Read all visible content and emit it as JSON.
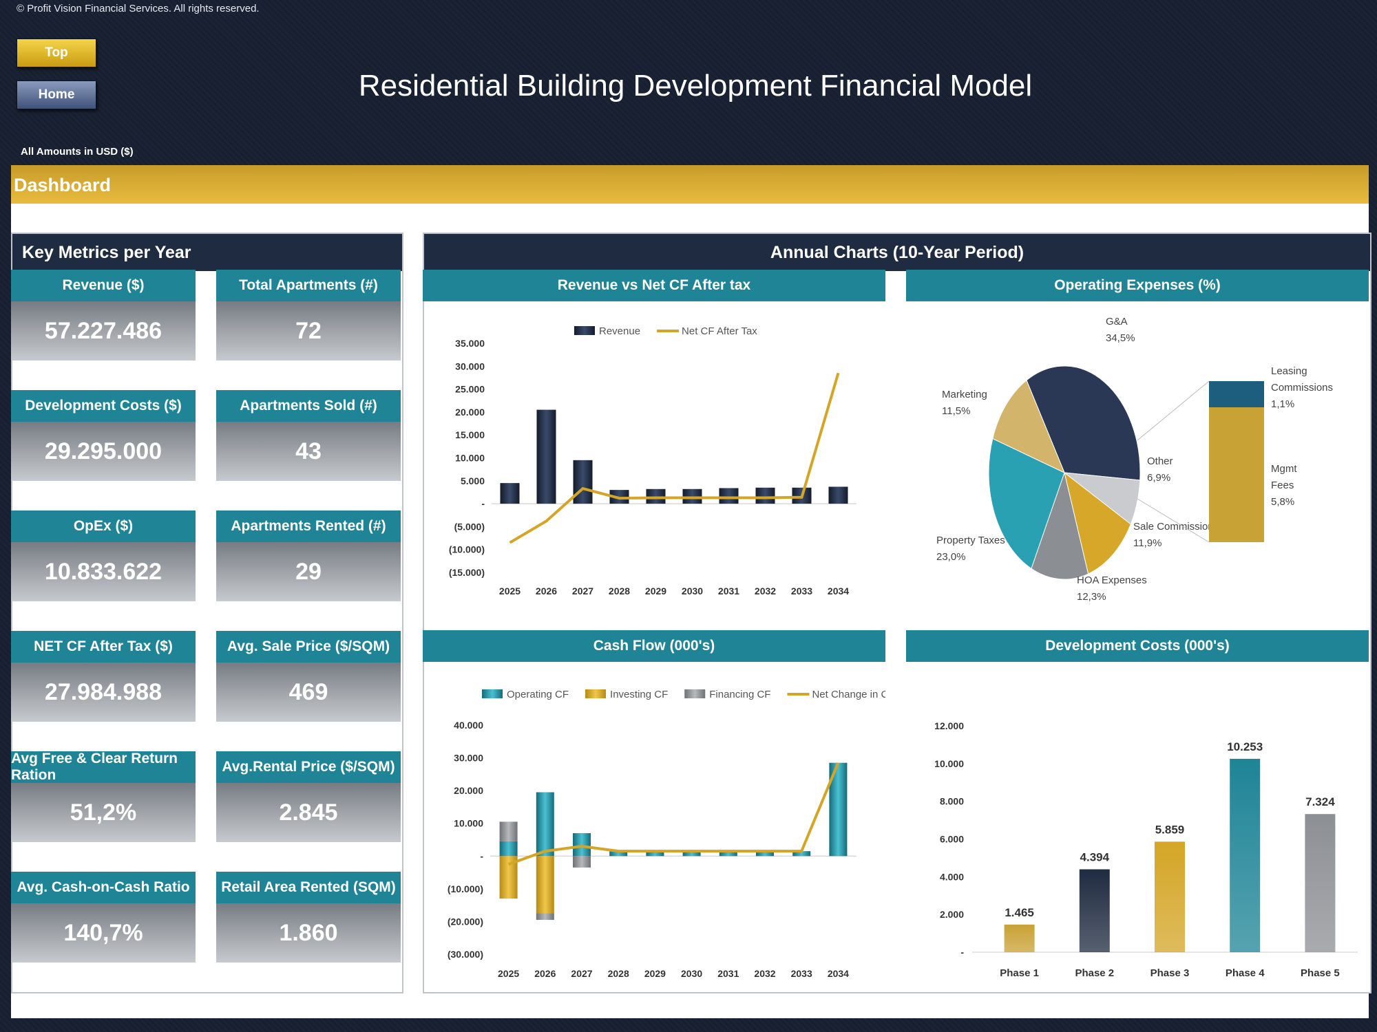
{
  "header": {
    "copyright": "© Profit Vision Financial Services. All rights reserved.",
    "top_button": "Top",
    "home_button": "Home",
    "title": "Residential Building Development Financial Model",
    "amounts_note": "All Amounts in  USD ($)"
  },
  "dashboard": {
    "title": "Dashboard",
    "key_metrics_title": "Key Metrics per Year",
    "annual_charts_title": "Annual Charts (10-Year Period)"
  },
  "metrics": [
    {
      "label": "Revenue ($)",
      "value": "57.227.486"
    },
    {
      "label": "Total Apartments (#)",
      "value": "72"
    },
    {
      "label": "Development Costs ($)",
      "value": "29.295.000"
    },
    {
      "label": "Apartments Sold (#)",
      "value": "43"
    },
    {
      "label": "OpEx ($)",
      "value": "10.833.622"
    },
    {
      "label": "Apartments Rented (#)",
      "value": "29"
    },
    {
      "label": "NET CF After Tax ($)",
      "value": "27.984.988"
    },
    {
      "label": "Avg. Sale Price ($/SQM)",
      "value": "469"
    },
    {
      "label": "Avg Free & Clear Return Ration",
      "value": "51,2%"
    },
    {
      "label": "Avg.Rental Price ($/SQM)",
      "value": "2.845"
    },
    {
      "label": "Avg. Cash-on-Cash Ratio",
      "value": "140,7%"
    },
    {
      "label": "Retail Area Rented (SQM)",
      "value": "1.860"
    }
  ],
  "colors": {
    "navy": "#1f2b40",
    "teal": "#1e8496",
    "gold": "#d4a526",
    "grey": "#8c8f94"
  },
  "chart_data": [
    {
      "type": "bar",
      "title": "Revenue vs Net CF After tax",
      "categories": [
        "2025",
        "2026",
        "2027",
        "2028",
        "2029",
        "2030",
        "2031",
        "2032",
        "2033",
        "2034"
      ],
      "series": [
        {
          "name": "Revenue",
          "kind": "bar",
          "color": "#1f2b40",
          "values": [
            4500,
            20500,
            9500,
            3000,
            3200,
            3200,
            3400,
            3500,
            3500,
            3700
          ]
        },
        {
          "name": "Net CF After Tax",
          "kind": "line",
          "color": "#d4a526",
          "values": [
            -8500,
            -3800,
            3300,
            1200,
            1300,
            1300,
            1300,
            1300,
            1400,
            28500
          ]
        }
      ],
      "ylim": [
        -15000,
        35000
      ],
      "yticks": [
        35000,
        30000,
        25000,
        20000,
        15000,
        10000,
        5000,
        0,
        -5000,
        -10000,
        -15000
      ],
      "ytick_labels": [
        "35.000",
        "30.000",
        "25.000",
        "20.000",
        "15.000",
        "10.000",
        "5.000",
        "-",
        "(5.000)",
        "(10.000)",
        "(15.000)"
      ],
      "legend": "top"
    },
    {
      "type": "pie",
      "title": "Operating Expenses (%)",
      "slices": [
        {
          "label": "G&A",
          "value": 34.5,
          "value_label": "34,5%",
          "color": "#2a3856"
        },
        {
          "label": "Other",
          "value": 6.9,
          "value_label": "6,9%",
          "color": "#c9cbce"
        },
        {
          "label": "Sale Commissions",
          "value": 11.9,
          "value_label": "11,9%",
          "color": "#d7a72a"
        },
        {
          "label": "HOA Expenses",
          "value": 12.3,
          "value_label": "12,3%",
          "color": "#8b8e92"
        },
        {
          "label": "Property Taxes",
          "value": 23.0,
          "value_label": "23,0%",
          "color": "#2aa0b3"
        },
        {
          "label": "Marketing",
          "value": 11.5,
          "value_label": "11,5%",
          "color": "#d2b56a"
        }
      ],
      "breakdown_of": "Other",
      "breakdown": [
        {
          "label": "Leasing Commissions",
          "value": 1.1,
          "value_label": "1,1%",
          "color": "#1d5e7f"
        },
        {
          "label": "Mgmt Fees",
          "value": 5.8,
          "value_label": "5,8%",
          "color": "#c9a235"
        }
      ]
    },
    {
      "type": "bar",
      "title": "Cash Flow (000's)",
      "categories": [
        "2025",
        "2026",
        "2027",
        "2028",
        "2029",
        "2030",
        "2031",
        "2032",
        "2033",
        "2034"
      ],
      "series": [
        {
          "name": "Operating CF",
          "kind": "bar",
          "color": "#1e8496",
          "values": [
            4500,
            19500,
            7000,
            1500,
            1500,
            1500,
            1500,
            1500,
            1500,
            28500
          ]
        },
        {
          "name": "Investing CF",
          "kind": "bar",
          "color": "#d4a526",
          "values": [
            -13000,
            -17500,
            0,
            0,
            0,
            0,
            0,
            0,
            0,
            0
          ]
        },
        {
          "name": "Financing CF",
          "kind": "bar",
          "color": "#8c8f94",
          "values": [
            6000,
            -2000,
            -3500,
            0,
            0,
            0,
            0,
            0,
            0,
            0
          ]
        },
        {
          "name": "Net Change in Cash",
          "kind": "line",
          "color": "#d4a526",
          "values": [
            -2500,
            1500,
            3000,
            1500,
            1500,
            1500,
            1500,
            1500,
            1500,
            28500
          ]
        }
      ],
      "ylim": [
        -30000,
        40000
      ],
      "yticks": [
        40000,
        30000,
        20000,
        10000,
        0,
        -10000,
        -20000,
        -30000
      ],
      "ytick_labels": [
        "40.000",
        "30.000",
        "20.000",
        "10.000",
        "-",
        "(10.000)",
        "(20.000)",
        "(30.000)"
      ],
      "legend": "top"
    },
    {
      "type": "bar",
      "title": "Development Costs (000's)",
      "categories": [
        "Phase 1",
        "Phase 2",
        "Phase 3",
        "Phase 4",
        "Phase 5"
      ],
      "values": [
        1465,
        4394,
        5859,
        10253,
        7324
      ],
      "value_labels": [
        "1.465",
        "4.394",
        "5.859",
        "10.253",
        "7.324"
      ],
      "colors": [
        "#c9a235",
        "#1f2b40",
        "#d4a526",
        "#1e8496",
        "#8c8f94"
      ],
      "ylim": [
        0,
        12000
      ],
      "yticks": [
        12000,
        10000,
        8000,
        6000,
        4000,
        2000,
        0
      ],
      "ytick_labels": [
        "12.000",
        "10.000",
        "8.000",
        "6.000",
        "4.000",
        "2.000",
        "-"
      ]
    }
  ]
}
